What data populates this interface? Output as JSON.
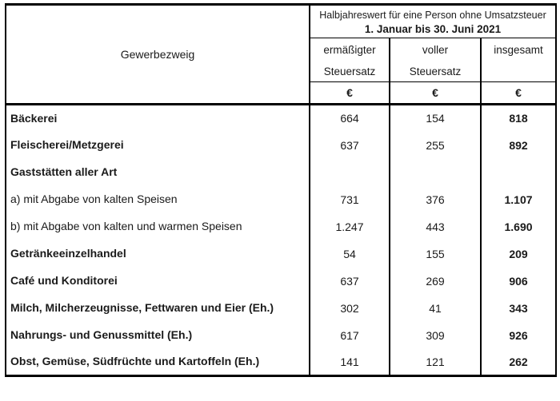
{
  "table": {
    "col_header": "Gewerbezweig",
    "header_line1": "Halbjahreswert für eine Person ohne Umsatzsteuer",
    "header_line2": "1. Januar bis 30. Juni 2021",
    "sub_columns": {
      "reduced": {
        "line1": "ermäßigter",
        "line2": "Steuersatz"
      },
      "full": {
        "line1": "voller",
        "line2": "Steuersatz"
      },
      "total": {
        "line1": "insgesamt",
        "line2": ""
      }
    },
    "currency_symbol": "€",
    "rows": [
      {
        "label": "Bäckerei",
        "bold": true,
        "reduced": "664",
        "full": "154",
        "total": "818"
      },
      {
        "label": "Fleischerei/Metzgerei",
        "bold": true,
        "reduced": "637",
        "full": "255",
        "total": "892"
      },
      {
        "label": "Gaststätten aller Art",
        "bold": true,
        "reduced": "",
        "full": "",
        "total": ""
      },
      {
        "label": "a) mit Abgabe von kalten Speisen",
        "bold": false,
        "reduced": "731",
        "full": "376",
        "total": "1.107"
      },
      {
        "label": "b) mit Abgabe von kalten und warmen Speisen",
        "bold": false,
        "reduced": "1.247",
        "full": "443",
        "total": "1.690"
      },
      {
        "label": "Getränkeeinzelhandel",
        "bold": true,
        "reduced": "54",
        "full": "155",
        "total": "209"
      },
      {
        "label": "Café und Konditorei",
        "bold": true,
        "reduced": "637",
        "full": "269",
        "total": "906"
      },
      {
        "label": "Milch, Milcherzeugnisse, Fettwaren und Eier (Eh.)",
        "bold": true,
        "reduced": "302",
        "full": "41",
        "total": "343"
      },
      {
        "label": "Nahrungs- und Genussmittel (Eh.)",
        "bold": true,
        "reduced": "617",
        "full": "309",
        "total": "926"
      },
      {
        "label": "Obst, Gemüse, Südfrüchte und Kartoffeln (Eh.)",
        "bold": true,
        "reduced": "141",
        "full": "121",
        "total": "262"
      }
    ]
  }
}
